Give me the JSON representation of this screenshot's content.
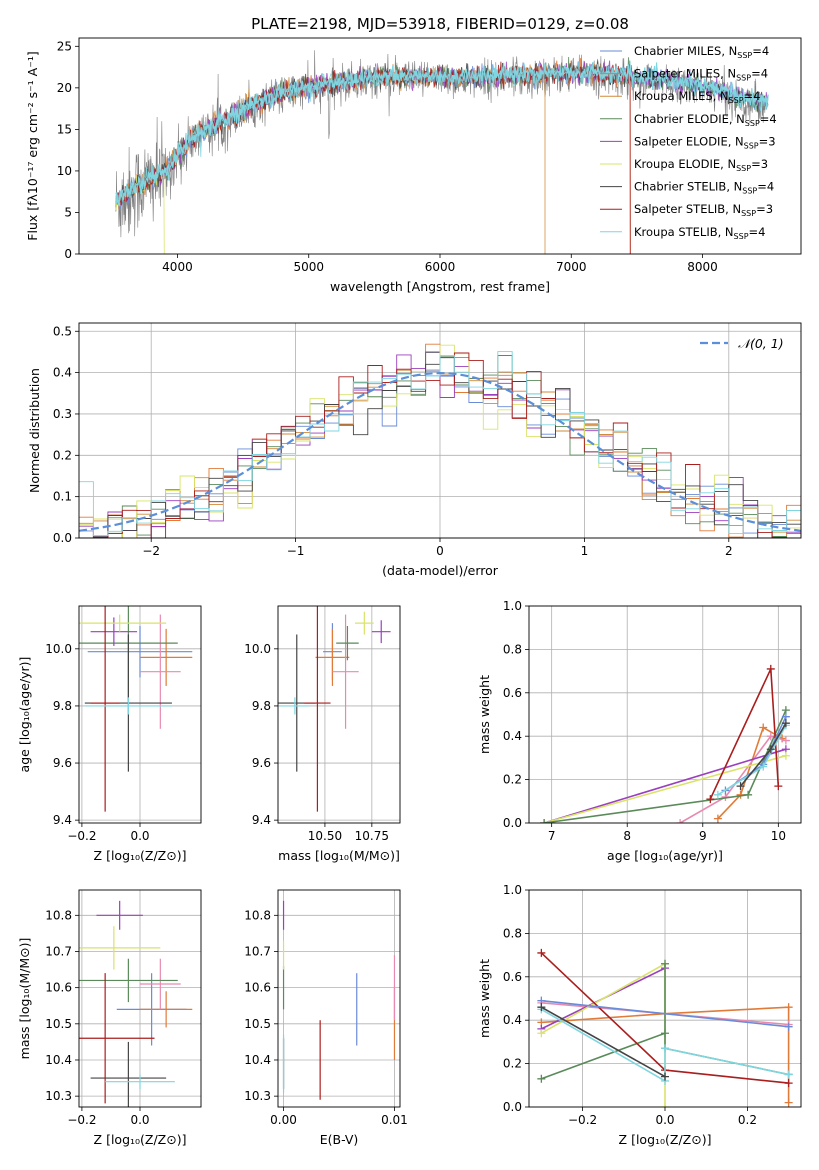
{
  "title": "PLATE=2198, MJD=53918, FIBERID=0129, z=0.08",
  "colors": {
    "chabrier_miles": "#6a8bd8",
    "salpeter_miles": "#e07b39",
    "kroupa_miles": "#d08a3a",
    "chabrier_elodie": "#5a8a5a",
    "salpeter_elodie": "#9b3fbf",
    "kroupa_elodie": "#d9e36a",
    "chabrier_stelib": "#444444",
    "salpeter_stelib": "#aa1e1e",
    "kroupa_stelib": "#7fd6e0",
    "pink": "#e88ab0",
    "gaussian": "#5b8fd9",
    "spectrum": "#808080"
  },
  "chart_data": [
    {
      "id": "spectrum",
      "type": "line",
      "xlabel": "wavelength [Angstrom, rest frame]",
      "ylabel": "Flux [fλ10⁻¹⁷ erg cm⁻² s⁻¹ A⁻¹]",
      "xlim": [
        3250,
        8750
      ],
      "ylim": [
        0,
        26
      ],
      "xticks": [
        "4000",
        "5000",
        "6000",
        "7000",
        "8000"
      ],
      "yticks": [
        "0",
        "5",
        "10",
        "15",
        "20",
        "25"
      ],
      "legend_position": "top-right",
      "legend": [
        {
          "label": "Chabrier MILES, N_SSP=4",
          "base": "Chabrier MILES, N",
          "sub": "SSP",
          "tail": "=4",
          "color": "#6a8bd8"
        },
        {
          "label": "Salpeter MILES, N_SSP=4",
          "base": "Salpeter MILES, N",
          "sub": "SSP",
          "tail": "=4",
          "color": "#e07b39"
        },
        {
          "label": "Kroupa MILES, N_SSP=4",
          "base": "Kroupa MILES, N",
          "sub": "SSP",
          "tail": "=4",
          "color": "#d08a3a"
        },
        {
          "label": "Chabrier ELODIE, N_SSP=4",
          "base": "Chabrier ELODIE, N",
          "sub": "SSP",
          "tail": "=4",
          "color": "#5a8a5a"
        },
        {
          "label": "Salpeter ELODIE, N_SSP=3",
          "base": "Salpeter ELODIE, N",
          "sub": "SSP",
          "tail": "=3",
          "color": "#9b3fbf"
        },
        {
          "label": "Kroupa ELODIE, N_SSP=3",
          "base": "Kroupa ELODIE, N",
          "sub": "SSP",
          "tail": "=3",
          "color": "#d9e36a"
        },
        {
          "label": "Chabrier STELIB, N_SSP=4",
          "base": "Chabrier STELIB, N",
          "sub": "SSP",
          "tail": "=4",
          "color": "#444444"
        },
        {
          "label": "Salpeter STELIB, N_SSP=3",
          "base": "Salpeter STELIB, N",
          "sub": "SSP",
          "tail": "=3",
          "color": "#aa1e1e"
        },
        {
          "label": "Kroupa STELIB, N_SSP=4",
          "base": "Kroupa STELIB, N",
          "sub": "SSP",
          "tail": "=4",
          "color": "#7fd6e0"
        }
      ],
      "continuum": {
        "x": [
          3530,
          3700,
          3900,
          4000,
          4100,
          4300,
          4500,
          4700,
          4900,
          5100,
          5300,
          5500,
          5800,
          6000,
          6300,
          6600,
          6900,
          7200,
          7500,
          7800,
          8100,
          8300,
          8500
        ],
        "y": [
          6,
          8,
          9.5,
          11.5,
          13.5,
          15.5,
          17,
          18.5,
          19.5,
          20,
          20.5,
          21,
          21,
          21,
          21,
          21.2,
          21.5,
          21.5,
          21,
          20.5,
          19.5,
          18.5,
          18
        ]
      }
    },
    {
      "id": "residuals",
      "type": "line",
      "xlabel": "(data-model)/error",
      "ylabel": "Normed distribution",
      "xlim": [
        -2.5,
        2.5
      ],
      "ylim": [
        0,
        0.52
      ],
      "xticks": [
        "−2",
        "−1",
        "0",
        "1",
        "2"
      ],
      "yticks": [
        "0.0",
        "0.1",
        "0.2",
        "0.3",
        "0.4",
        "0.5"
      ],
      "legend_position": "top-right",
      "legend": [
        {
          "label": "𝒩(0, 1)",
          "color": "#5b8fd9"
        }
      ],
      "bin_width": 0.1
    },
    {
      "id": "age_vs_Z",
      "type": "scatter",
      "xlabel": "Z [log₁₀(Z/Z⊙)]",
      "ylabel": "age  [log₁₀(age/yr)]",
      "xlim": [
        -0.21,
        0.21
      ],
      "ylim": [
        9.39,
        10.15
      ],
      "xticks": [
        "−0.2",
        "0.0"
      ],
      "yticks": [
        "9.4",
        "9.6",
        "9.8",
        "10.0"
      ],
      "points": [
        {
          "x": 0.0,
          "y": 9.99,
          "xerr": 0.18,
          "yerr": 0.09,
          "color": "#6a8bd8"
        },
        {
          "x": 0.09,
          "y": 9.97,
          "xerr": 0.09,
          "yerr": 0.1,
          "color": "#e07b39"
        },
        {
          "x": 0.07,
          "y": 9.92,
          "xerr": 0.07,
          "yerr": 0.2,
          "color": "#e88ab0"
        },
        {
          "x": -0.04,
          "y": 10.02,
          "xerr": 0.17,
          "yerr": 0.2,
          "color": "#5a8a5a"
        },
        {
          "x": -0.09,
          "y": 10.06,
          "xerr": 0.08,
          "yerr": 0.05,
          "color": "#9b3fbf"
        },
        {
          "x": -0.07,
          "y": 10.09,
          "xerr": 0.16,
          "yerr": 0.03,
          "color": "#d9e36a"
        },
        {
          "x": -0.04,
          "y": 9.81,
          "xerr": 0.15,
          "yerr": 0.24,
          "color": "#444444"
        },
        {
          "x": -0.12,
          "y": 9.81,
          "xerr": 0.05,
          "yerr": 0.38,
          "color": "#aa1e1e"
        },
        {
          "x": -0.04,
          "y": 9.8,
          "xerr": 0.15,
          "yerr": 0.03,
          "color": "#7fd6e0"
        }
      ]
    },
    {
      "id": "age_vs_mass",
      "type": "scatter",
      "xlabel": "mass [log₁₀(M/M⊙)]",
      "ylabel": "",
      "xlim": [
        10.25,
        10.9
      ],
      "ylim": [
        9.39,
        10.15
      ],
      "xticks": [
        "10.50",
        "10.75"
      ],
      "yticks": [
        "9.4",
        "9.6",
        "9.8",
        "10.0"
      ],
      "points": [
        {
          "x": 10.54,
          "y": 9.99,
          "xerr": 0.05,
          "yerr": 0.1,
          "color": "#6a8bd8"
        },
        {
          "x": 10.54,
          "y": 9.97,
          "xerr": 0.09,
          "yerr": 0.1,
          "color": "#e07b39"
        },
        {
          "x": 10.61,
          "y": 9.92,
          "xerr": 0.07,
          "yerr": 0.2,
          "color": "#e88ab0"
        },
        {
          "x": 10.62,
          "y": 10.02,
          "xerr": 0.06,
          "yerr": 0.06,
          "color": "#5a8a5a"
        },
        {
          "x": 10.8,
          "y": 10.06,
          "xerr": 0.05,
          "yerr": 0.04,
          "color": "#9b3fbf"
        },
        {
          "x": 10.71,
          "y": 10.09,
          "xerr": 0.05,
          "yerr": 0.04,
          "color": "#d9e36a"
        },
        {
          "x": 10.35,
          "y": 9.81,
          "xerr": 0.1,
          "yerr": 0.24,
          "color": "#444444"
        },
        {
          "x": 10.46,
          "y": 9.81,
          "xerr": 0.07,
          "yerr": 0.38,
          "color": "#aa1e1e"
        },
        {
          "x": 10.34,
          "y": 9.8,
          "xerr": 0.08,
          "yerr": 0.03,
          "color": "#7fd6e0"
        }
      ]
    },
    {
      "id": "weight_vs_age",
      "type": "line",
      "xlabel": "age  [log₁₀(age/yr)]",
      "ylabel": "mass weight",
      "xlim": [
        6.7,
        10.3
      ],
      "ylim": [
        0,
        1.0
      ],
      "xticks": [
        "7",
        "8",
        "9",
        "10"
      ],
      "yticks": [
        "0.0",
        "0.2",
        "0.4",
        "0.6",
        "0.8",
        "1.0"
      ],
      "series": [
        {
          "color": "#e07b39",
          "x": [
            9.2,
            9.5,
            9.8,
            10.05
          ],
          "y": [
            0.02,
            0.13,
            0.44,
            0.39
          ]
        },
        {
          "color": "#e88ab0",
          "x": [
            8.7,
            9.3,
            9.9,
            10.1
          ],
          "y": [
            0.0,
            0.12,
            0.4,
            0.38
          ]
        },
        {
          "color": "#9b3fbf",
          "x": [
            6.9,
            10.1
          ],
          "y": [
            0.0,
            0.34
          ]
        },
        {
          "color": "#d9e36a",
          "x": [
            6.9,
            10.1
          ],
          "y": [
            0.0,
            0.31
          ]
        },
        {
          "color": "#5a8a5a",
          "x": [
            6.9,
            9.6,
            10.1
          ],
          "y": [
            0.0,
            0.13,
            0.52
          ]
        },
        {
          "color": "#aa1e1e",
          "x": [
            9.1,
            9.9,
            10.0
          ],
          "y": [
            0.11,
            0.71,
            0.17
          ]
        },
        {
          "color": "#6a8bd8",
          "x": [
            9.3,
            9.8,
            10.1
          ],
          "y": [
            0.15,
            0.27,
            0.49
          ]
        },
        {
          "color": "#7fd6e0",
          "x": [
            9.2,
            9.8,
            10.1
          ],
          "y": [
            0.13,
            0.26,
            0.45
          ]
        },
        {
          "color": "#444444",
          "x": [
            9.5,
            9.9,
            10.1
          ],
          "y": [
            0.17,
            0.34,
            0.46
          ]
        }
      ]
    },
    {
      "id": "mass_vs_Z",
      "type": "scatter",
      "xlabel": "Z [log₁₀(Z/Z⊙)]",
      "ylabel": "mass [log₁₀(M/M⊙)]",
      "xlim": [
        -0.21,
        0.21
      ],
      "ylim": [
        10.27,
        10.87
      ],
      "xticks": [
        "−0.2",
        "0.0"
      ],
      "yticks": [
        "10.3",
        "10.4",
        "10.5",
        "10.6",
        "10.7",
        "10.8"
      ],
      "points": [
        {
          "x": 0.04,
          "y": 10.54,
          "xerr": 0.12,
          "yerr": 0.1,
          "color": "#6a8bd8"
        },
        {
          "x": 0.09,
          "y": 10.54,
          "xerr": 0.09,
          "yerr": 0.05,
          "color": "#e07b39"
        },
        {
          "x": 0.07,
          "y": 10.61,
          "xerr": 0.07,
          "yerr": 0.07,
          "color": "#e88ab0"
        },
        {
          "x": -0.04,
          "y": 10.62,
          "xerr": 0.17,
          "yerr": 0.06,
          "color": "#5a8a5a"
        },
        {
          "x": -0.07,
          "y": 10.8,
          "xerr": 0.08,
          "yerr": 0.04,
          "color": "#9b3fbf"
        },
        {
          "x": -0.09,
          "y": 10.71,
          "xerr": 0.16,
          "yerr": 0.06,
          "color": "#d9e36a"
        },
        {
          "x": -0.04,
          "y": 10.35,
          "xerr": 0.13,
          "yerr": 0.1,
          "color": "#444444"
        },
        {
          "x": -0.12,
          "y": 10.46,
          "xerr": 0.17,
          "yerr": 0.18,
          "color": "#aa1e1e"
        },
        {
          "x": 0.0,
          "y": 10.34,
          "xerr": 0.12,
          "yerr": 0.02,
          "color": "#7fd6e0"
        }
      ]
    },
    {
      "id": "mass_vs_ebv",
      "type": "scatter",
      "xlabel": "E(B-V)",
      "ylabel": "",
      "xlim": [
        -0.0005,
        0.0105
      ],
      "ylim": [
        10.27,
        10.87
      ],
      "xticks": [
        "0.00",
        "0.01"
      ],
      "yticks": [
        "10.3",
        "10.4",
        "10.5",
        "10.6",
        "10.7",
        "10.8"
      ],
      "points": [
        {
          "x": 0.0066,
          "y": 10.54,
          "yerr": 0.1,
          "color": "#6a8bd8"
        },
        {
          "x": 0.01,
          "y": 10.5,
          "yerr": 0.1,
          "color": "#e07b39"
        },
        {
          "x": 0.01,
          "y": 10.6,
          "yerr": 0.09,
          "color": "#e88ab0"
        },
        {
          "x": 0.0,
          "y": 10.6,
          "yerr": 0.06,
          "color": "#5a8a5a"
        },
        {
          "x": 0.0,
          "y": 10.8,
          "yerr": 0.04,
          "color": "#9b3fbf"
        },
        {
          "x": 0.0,
          "y": 10.69,
          "yerr": 0.04,
          "color": "#d9e36a"
        },
        {
          "x": 0.0,
          "y": 10.39,
          "yerr": 0.07,
          "color": "#444444"
        },
        {
          "x": 0.0033,
          "y": 10.4,
          "yerr": 0.11,
          "color": "#aa1e1e"
        },
        {
          "x": 0.0,
          "y": 10.39,
          "yerr": 0.08,
          "color": "#7fd6e0"
        }
      ]
    },
    {
      "id": "weight_vs_Z",
      "type": "line",
      "xlabel": "Z [log₁₀(Z/Z⊙)]",
      "ylabel": "mass weight",
      "xlim": [
        -0.33,
        0.33
      ],
      "ylim": [
        0,
        1.0
      ],
      "xticks": [
        "−0.2",
        "0.0",
        "0.2"
      ],
      "yticks": [
        "0.0",
        "0.2",
        "0.4",
        "0.6",
        "0.8",
        "1.0"
      ],
      "series": [
        {
          "color": "#e07b39",
          "x": [
            -0.3,
            0.0,
            0.3,
            0.3
          ],
          "y": [
            0.39,
            0.43,
            0.46,
            0.02
          ]
        },
        {
          "color": "#e88ab0",
          "x": [
            -0.3,
            0.3
          ],
          "y": [
            0.48,
            0.38
          ]
        },
        {
          "color": "#9b3fbf",
          "x": [
            -0.3,
            0.0
          ],
          "y": [
            0.36,
            0.64
          ]
        },
        {
          "color": "#d9e36a",
          "x": [
            -0.3,
            0.0,
            0.0
          ],
          "y": [
            0.34,
            0.66,
            0.0
          ]
        },
        {
          "color": "#5a8a5a",
          "x": [
            -0.3,
            0.0,
            0.0,
            0.0,
            0.3
          ],
          "y": [
            0.13,
            0.34,
            0.66,
            0.27,
            0.15
          ]
        },
        {
          "color": "#aa1e1e",
          "x": [
            -0.3,
            0.0,
            0.3
          ],
          "y": [
            0.71,
            0.17,
            0.11
          ]
        },
        {
          "color": "#6a8bd8",
          "x": [
            -0.3,
            0.3
          ],
          "y": [
            0.49,
            0.37
          ]
        },
        {
          "color": "#7fd6e0",
          "x": [
            -0.3,
            0.0,
            0.0,
            0.3
          ],
          "y": [
            0.45,
            0.12,
            0.27,
            0.15
          ]
        },
        {
          "color": "#444444",
          "x": [
            -0.3,
            0.0
          ],
          "y": [
            0.46,
            0.14
          ]
        }
      ]
    }
  ]
}
